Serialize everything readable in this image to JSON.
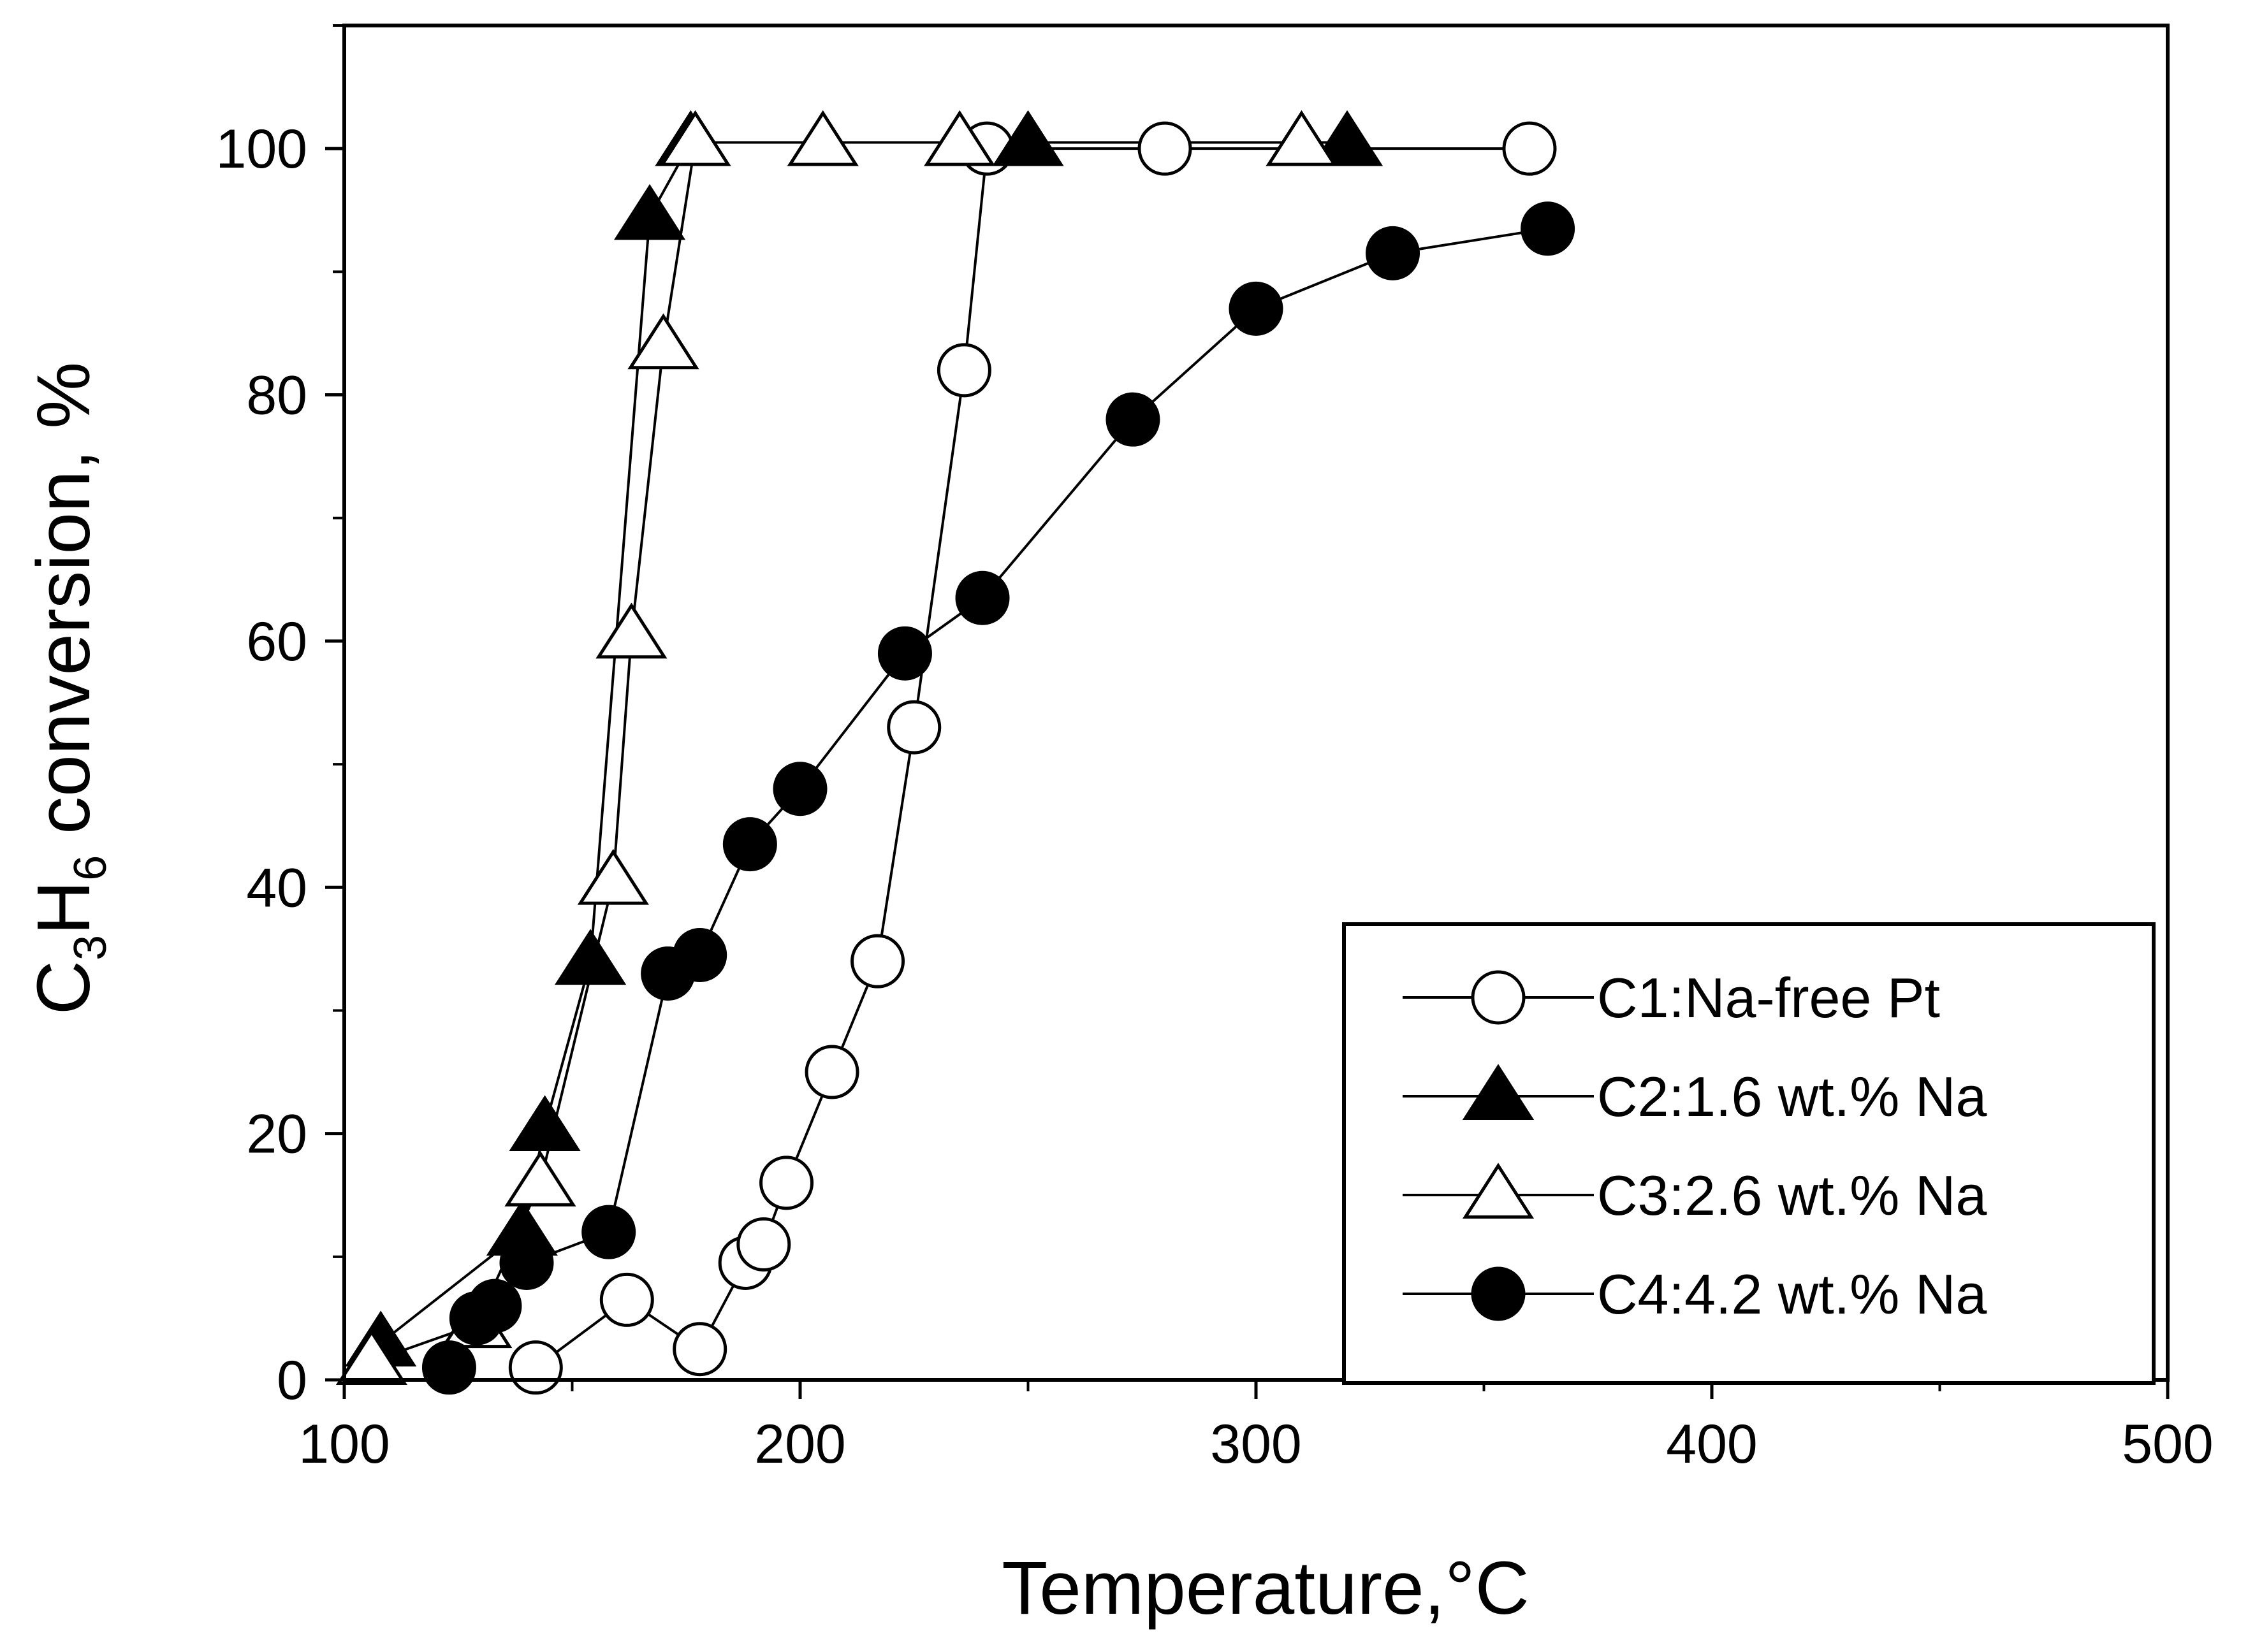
{
  "chart_data": {
    "type": "line",
    "title": "",
    "xlabel": "Temperature,°C",
    "ylabel": {
      "c": "C",
      "sub3": "3",
      "h": "H",
      "sub6": "6",
      "rest": " conversion, %"
    },
    "xlim": [
      100,
      500
    ],
    "ylim": [
      0,
      110
    ],
    "xticks": [
      100,
      200,
      300,
      400,
      500
    ],
    "xtick_labels": [
      "100",
      "200",
      "300",
      "400",
      "500"
    ],
    "yticks": [
      0,
      20,
      40,
      60,
      80,
      100
    ],
    "ytick_labels": [
      "0",
      "20",
      "40",
      "60",
      "80",
      "100"
    ],
    "grid": false,
    "legend_position": "bottom-right",
    "series": [
      {
        "name": "C1:Na-free Pt",
        "marker": "circle",
        "filled": false,
        "x": [
          142,
          162,
          178,
          188,
          192,
          197,
          207,
          217,
          225,
          236,
          241,
          280,
          360
        ],
        "y": [
          1,
          6.5,
          2.5,
          9.5,
          11,
          16,
          25,
          34,
          53,
          82,
          100,
          100,
          100
        ]
      },
      {
        "name": "C2:1.6 wt.% Na",
        "marker": "triangle",
        "filled": true,
        "x": [
          108,
          139,
          144,
          154,
          167,
          176,
          250,
          320
        ],
        "y": [
          3,
          12,
          20.5,
          34,
          94.5,
          100.5,
          100.5,
          100.5
        ]
      },
      {
        "name": "C3:2.6 wt.% Na",
        "marker": "triangle",
        "filled": false,
        "x": [
          106,
          129,
          143,
          159,
          163,
          170,
          177,
          205,
          235,
          310
        ],
        "y": [
          1.5,
          4.5,
          16,
          40.5,
          60.5,
          84,
          100.5,
          100.5,
          100.5,
          100.5
        ]
      },
      {
        "name": "C4:4.2 wt.% Na",
        "marker": "circle",
        "filled": true,
        "x": [
          123,
          129,
          133,
          140,
          158,
          171,
          178,
          189,
          200,
          223,
          240,
          273,
          300,
          330,
          364
        ],
        "y": [
          1,
          5,
          6,
          9.5,
          12,
          33,
          34.5,
          43.5,
          48,
          59,
          63.5,
          78,
          87,
          91.5,
          93.5
        ]
      }
    ]
  }
}
